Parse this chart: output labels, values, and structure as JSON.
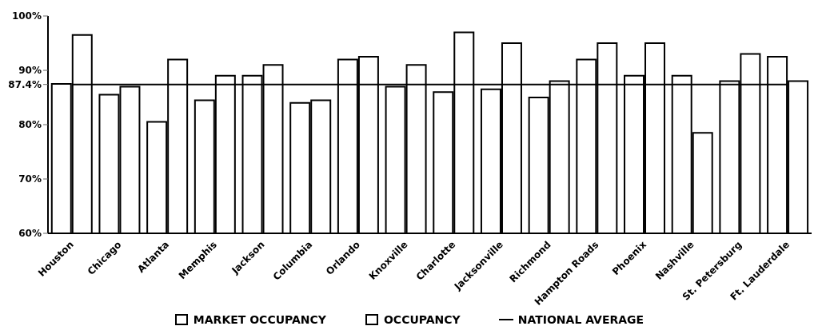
{
  "chart_data": {
    "type": "bar",
    "categories": [
      "Houston",
      "Chicago",
      "Atlanta",
      "Memphis",
      "Jackson",
      "Columbia",
      "Orlando",
      "Knoxville",
      "Charlotte",
      "Jacksonville",
      "Richmond",
      "Hampton Roads",
      "Phoenix",
      "Nashville",
      "St. Petersburg",
      "Ft. Lauderdale"
    ],
    "series": [
      {
        "name": "MARKET OCCUPANCY",
        "color": "#ffffff",
        "values": [
          87.5,
          85.5,
          80.5,
          84.5,
          89,
          84,
          92,
          87,
          86,
          86.5,
          85,
          92,
          89,
          89,
          88,
          92.5
        ]
      },
      {
        "name": "OCCUPANCY",
        "color": "#ffffff",
        "values": [
          96.5,
          87,
          92,
          89,
          91,
          84.5,
          92.5,
          91,
          97,
          95,
          88,
          95,
          95,
          78.5,
          93,
          88
        ]
      },
      {
        "name": "NATIONAL AVERAGE",
        "type": "line",
        "color": "#000000",
        "values": [
          87.4,
          87.4,
          87.4,
          87.4,
          87.4,
          87.4,
          87.4,
          87.4,
          87.4,
          87.4,
          87.4,
          87.4,
          87.4,
          87.4,
          87.4,
          87.4
        ]
      }
    ],
    "ylim": [
      60,
      100
    ],
    "yticks": [
      {
        "value": 60,
        "label": "60%"
      },
      {
        "value": 70,
        "label": "70%"
      },
      {
        "value": 80,
        "label": "80%"
      },
      {
        "value": 87.4,
        "label": "87.4%"
      },
      {
        "value": 90,
        "label": "90%"
      },
      {
        "value": 100,
        "label": "100%"
      }
    ],
    "legend": "bottom"
  }
}
